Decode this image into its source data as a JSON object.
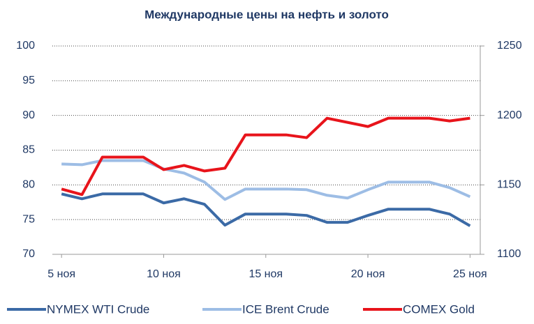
{
  "chart_data": {
    "type": "line",
    "title": "Международные цены на нефть и золото",
    "x": [
      5,
      6,
      7,
      8,
      9,
      10,
      11,
      12,
      13,
      14,
      15,
      16,
      17,
      18,
      19,
      20,
      21,
      22,
      23,
      24,
      25
    ],
    "xlim": [
      4.55,
      25.5
    ],
    "xticks": [
      {
        "value": 5,
        "label": "5 ноя"
      },
      {
        "value": 10,
        "label": "10 ноя"
      },
      {
        "value": 15,
        "label": "15 ноя"
      },
      {
        "value": 20,
        "label": "20 ноя"
      },
      {
        "value": 25,
        "label": "25 ноя"
      }
    ],
    "ylim": [
      70,
      100
    ],
    "yticks": [
      70,
      75,
      80,
      85,
      90,
      95,
      100
    ],
    "y2lim": [
      1100,
      1250
    ],
    "y2ticks": [
      1100,
      1150,
      1200,
      1250
    ],
    "grid": true,
    "legend": "bottom",
    "series": [
      {
        "name": "NYMEX WTI Crude",
        "color": "#3b6aa6",
        "values": [
          78.7,
          78.0,
          78.7,
          78.7,
          78.7,
          77.4,
          78.0,
          77.2,
          74.2,
          75.8,
          75.8,
          75.8,
          75.6,
          74.6,
          74.6,
          75.6,
          76.5,
          76.5,
          76.5,
          75.8,
          74.1
        ]
      },
      {
        "name": "ICE Brent Crude",
        "color": "#9dbde5",
        "values": [
          83.0,
          82.9,
          83.5,
          83.5,
          83.5,
          82.3,
          81.7,
          80.4,
          77.9,
          79.4,
          79.4,
          79.4,
          79.3,
          78.5,
          78.1,
          79.3,
          80.4,
          80.4,
          80.4,
          79.6,
          78.3
        ]
      },
      {
        "name": "COMEX Gold",
        "color": "#e8141b",
        "axis": "y2",
        "values": [
          1147,
          1143,
          1170,
          1170,
          1170,
          1161,
          1164,
          1160,
          1162,
          1186,
          1186,
          1186,
          1184,
          1198,
          1195,
          1192,
          1198,
          1198,
          1198,
          1196,
          1198
        ]
      }
    ]
  }
}
